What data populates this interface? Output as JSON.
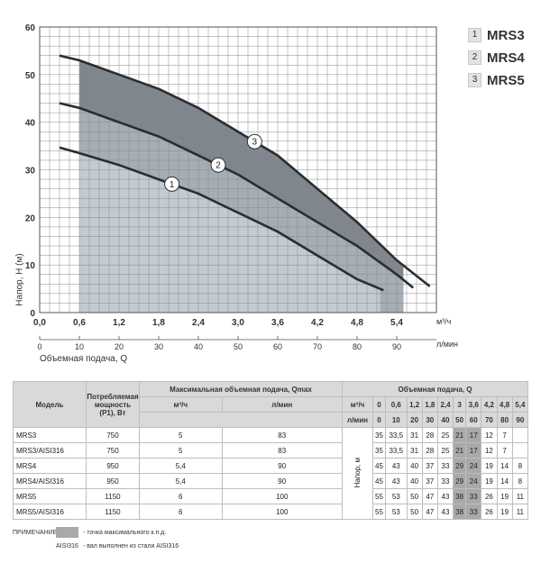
{
  "legend": [
    {
      "num": "1",
      "name": "MRS3"
    },
    {
      "num": "2",
      "name": "MRS4"
    },
    {
      "num": "3",
      "name": "MRS5"
    }
  ],
  "chart_data": {
    "type": "line",
    "xlabel": "Объемная подача, Q",
    "ylabel": "Напор, H (м)",
    "x_unit_primary": "м³/ч",
    "x_unit_secondary": "л/мин",
    "xlim": [
      0,
      6.0
    ],
    "ylim": [
      0,
      60
    ],
    "x_ticks": [
      "0,0",
      "0,6",
      "1,2",
      "1,8",
      "2,4",
      "3,0",
      "3,6",
      "4,2",
      "4,8",
      "5,4"
    ],
    "x_ticks_lmin": [
      "0",
      "10",
      "20",
      "30",
      "40",
      "50",
      "60",
      "70",
      "80",
      "90"
    ],
    "y_ticks": [
      "0",
      "10",
      "20",
      "30",
      "40",
      "50",
      "60"
    ],
    "grid": true,
    "series": [
      {
        "name": "1",
        "x": [
          0.3,
          0.6,
          1.2,
          1.8,
          2.4,
          3.0,
          3.6,
          4.2,
          4.8,
          5.2
        ],
        "y": [
          34.7,
          33.5,
          31,
          28,
          25,
          21,
          17,
          12,
          7,
          4.7
        ]
      },
      {
        "name": "2",
        "x": [
          0.3,
          0.6,
          1.2,
          1.8,
          2.4,
          3.0,
          3.6,
          4.2,
          4.8,
          5.4,
          5.65
        ],
        "y": [
          44,
          43,
          40,
          37,
          33,
          29,
          24,
          19,
          14,
          8,
          5.2
        ]
      },
      {
        "name": "3",
        "x": [
          0.3,
          0.6,
          1.2,
          1.8,
          2.4,
          3.0,
          3.6,
          4.2,
          4.8,
          5.4,
          5.9
        ],
        "y": [
          54,
          53,
          50,
          47,
          43,
          38,
          33,
          26,
          19,
          11,
          5.5
        ]
      }
    ],
    "efficiency_range_x": [
      0.6,
      5.5
    ]
  },
  "table": {
    "headers": {
      "model": "Модель",
      "power": "Потребляемая мощность (P1), Вт",
      "qmax": "Максимальная объемная подача, Qmax",
      "qmax_m3": "м³/ч",
      "qmax_lmin": "л/мин",
      "flow": "Объемная подача, Q",
      "flow_m3_label": "м³/ч",
      "flow_lmin_label": "л/мин",
      "head": "Напор, м"
    },
    "flow_m3": [
      "0",
      "0,6",
      "1,2",
      "1,8",
      "2,4",
      "3",
      "3,6",
      "4,2",
      "4,8",
      "5,4"
    ],
    "flow_lmin": [
      "0",
      "10",
      "20",
      "30",
      "40",
      "50",
      "60",
      "70",
      "80",
      "90"
    ],
    "rows": [
      {
        "model": "MRS3",
        "power": "750",
        "qm3": "5",
        "ql": "83",
        "heads": [
          "35",
          "33,5",
          "31",
          "28",
          "25",
          "21",
          "17",
          "12",
          "7",
          ""
        ]
      },
      {
        "model": "MRS3/AISI316",
        "power": "750",
        "qm3": "5",
        "ql": "83",
        "heads": [
          "35",
          "33,5",
          "31",
          "28",
          "25",
          "21",
          "17",
          "12",
          "7",
          ""
        ]
      },
      {
        "model": "MRS4",
        "power": "950",
        "qm3": "5,4",
        "ql": "90",
        "heads": [
          "45",
          "43",
          "40",
          "37",
          "33",
          "29",
          "24",
          "19",
          "14",
          "8"
        ]
      },
      {
        "model": "MRS4/AISI316",
        "power": "950",
        "qm3": "5,4",
        "ql": "90",
        "heads": [
          "45",
          "43",
          "40",
          "37",
          "33",
          "29",
          "24",
          "19",
          "14",
          "8"
        ]
      },
      {
        "model": "MRS5",
        "power": "1150",
        "qm3": "6",
        "ql": "100",
        "heads": [
          "55",
          "53",
          "50",
          "47",
          "43",
          "38",
          "33",
          "26",
          "19",
          "11"
        ]
      },
      {
        "model": "MRS5/AISI316",
        "power": "1150",
        "qm3": "6",
        "ql": "100",
        "heads": [
          "55",
          "53",
          "50",
          "47",
          "43",
          "38",
          "33",
          "26",
          "19",
          "11"
        ]
      }
    ],
    "highlight_cols": [
      5,
      6
    ]
  },
  "notes": {
    "label": "ПРИМЕЧАНИЕ:",
    "efficiency": "- точка максимального к.п.д.",
    "aisi": "AISI316",
    "aisi_text": "- вал выполнен из стали AISI316"
  },
  "colors": {
    "band1": "#c3cad2",
    "band2": "#a5adb5",
    "band3": "#7f868d",
    "curve": "#2a2e33",
    "grid": "#8a8a8a",
    "highlight": "#a9a9a9"
  }
}
